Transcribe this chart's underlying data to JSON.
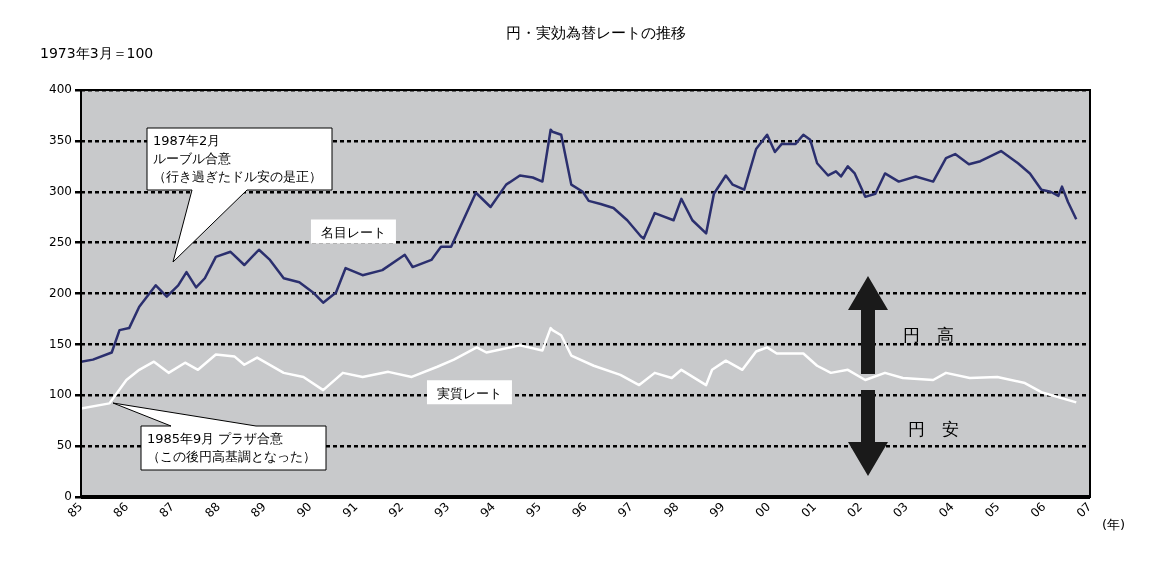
{
  "chart_data": {
    "type": "line",
    "title": "円・実効為替レートの推移",
    "subtitle": "1973年3月＝100",
    "xlabel": "(年)",
    "xlim": [
      1985,
      2007
    ],
    "xticks": [
      {
        "value": 1985,
        "label": "85"
      },
      {
        "value": 1986,
        "label": "86"
      },
      {
        "value": 1987,
        "label": "87"
      },
      {
        "value": 1988,
        "label": "88"
      },
      {
        "value": 1989,
        "label": "89"
      },
      {
        "value": 1990,
        "label": "90"
      },
      {
        "value": 1991,
        "label": "91"
      },
      {
        "value": 1992,
        "label": "92"
      },
      {
        "value": 1993,
        "label": "93"
      },
      {
        "value": 1994,
        "label": "94"
      },
      {
        "value": 1995,
        "label": "95"
      },
      {
        "value": 1996,
        "label": "96"
      },
      {
        "value": 1997,
        "label": "97"
      },
      {
        "value": 1998,
        "label": "98"
      },
      {
        "value": 1999,
        "label": "99"
      },
      {
        "value": 2000,
        "label": "00"
      },
      {
        "value": 2001,
        "label": "01"
      },
      {
        "value": 2002,
        "label": "02"
      },
      {
        "value": 2003,
        "label": "03"
      },
      {
        "value": 2004,
        "label": "04"
      },
      {
        "value": 2005,
        "label": "05"
      },
      {
        "value": 2006,
        "label": "06"
      },
      {
        "value": 2007,
        "label": "07"
      }
    ],
    "ylim": [
      0,
      400
    ],
    "yticks": [
      0,
      50,
      100,
      150,
      200,
      250,
      300,
      350,
      400
    ],
    "grid": "y",
    "legend": false,
    "marker": "none",
    "line_style": "solid",
    "series": [
      {
        "name": "名目レート",
        "color": "#2b2f6e",
        "x": [
          1985.0,
          1985.26,
          1985.67,
          1985.84,
          1986.05,
          1986.27,
          1986.63,
          1986.87,
          1987.12,
          1987.3,
          1987.51,
          1987.7,
          1987.94,
          1988.26,
          1988.56,
          1988.88,
          1989.12,
          1989.42,
          1989.76,
          1990.06,
          1990.28,
          1990.56,
          1990.77,
          1991.14,
          1991.57,
          1992.06,
          1992.23,
          1992.64,
          1992.85,
          1993.07,
          1993.61,
          1993.93,
          1994.27,
          1994.57,
          1994.85,
          1995.06,
          1995.24,
          1995.28,
          1995.47,
          1995.69,
          1995.94,
          1996.07,
          1996.33,
          1996.61,
          1996.91,
          1997.21,
          1997.27,
          1997.51,
          1997.92,
          1998.09,
          1998.33,
          1998.63,
          1998.8,
          1999.06,
          1999.21,
          1999.46,
          1999.72,
          1999.96,
          2000.13,
          2000.28,
          2000.58,
          2000.75,
          2000.9,
          2001.05,
          2001.29,
          2001.46,
          2001.57,
          2001.72,
          2001.87,
          2002.1,
          2002.32,
          2002.53,
          2002.83,
          2003.2,
          2003.58,
          2003.86,
          2004.06,
          2004.36,
          2004.61,
          2005.06,
          2005.43,
          2005.69,
          2005.94,
          2006.14,
          2006.31,
          2006.39,
          2006.52,
          2006.7
        ],
        "values": [
          133,
          135,
          142,
          164,
          166,
          187,
          208,
          197,
          208,
          221,
          206,
          215,
          236,
          241,
          228,
          243,
          233,
          215,
          211,
          201,
          191,
          201,
          225,
          218,
          223,
          238,
          226,
          233,
          246,
          246,
          299,
          285,
          307,
          316,
          314,
          310,
          361,
          359,
          356,
          307,
          300,
          291,
          288,
          284,
          272,
          256,
          254,
          279,
          272,
          293,
          272,
          259,
          298,
          316,
          307,
          302,
          342,
          356,
          339,
          347,
          347,
          356,
          351,
          328,
          316,
          320,
          315,
          325,
          318,
          295,
          298,
          318,
          310,
          315,
          310,
          333,
          337,
          327,
          330,
          340,
          328,
          318,
          302,
          300,
          296,
          305,
          290,
          273
        ]
      },
      {
        "name": "実質レート",
        "color": "#ffffff",
        "x": [
          1985.0,
          1985.62,
          1985.99,
          1986.27,
          1986.59,
          1986.91,
          1987.27,
          1987.55,
          1987.94,
          1988.35,
          1988.56,
          1988.84,
          1989.42,
          1989.85,
          1990.28,
          1990.71,
          1991.14,
          1991.7,
          1992.21,
          1992.77,
          1993.13,
          1993.63,
          1993.84,
          1994.57,
          1995.06,
          1995.24,
          1995.28,
          1995.47,
          1995.69,
          1996.18,
          1996.76,
          1997.17,
          1997.51,
          1997.88,
          1998.09,
          1998.63,
          1998.76,
          1999.06,
          1999.42,
          1999.72,
          1999.96,
          2000.17,
          2000.75,
          2001.05,
          2001.35,
          2001.72,
          2002.1,
          2002.53,
          2002.92,
          2003.58,
          2003.86,
          2004.38,
          2004.98,
          2005.58,
          2005.94,
          2006.7
        ],
        "values": [
          87,
          92,
          115,
          125,
          133,
          122,
          132,
          125,
          140,
          138,
          130,
          137,
          122,
          118,
          105,
          122,
          118,
          123,
          118,
          128,
          135,
          147,
          142,
          149,
          144,
          166,
          164,
          159,
          139,
          129,
          120,
          110,
          122,
          117,
          125,
          110,
          125,
          134,
          125,
          143,
          147,
          141,
          141,
          129,
          122,
          125,
          115,
          122,
          117,
          115,
          122,
          117,
          118,
          112,
          103,
          93
        ]
      }
    ],
    "annotations": [
      "1987年2月ルーブル合意（行き過ぎたドル安の是正）",
      "1985年9月  プラザ合意（この後円高基調となった）",
      "円　高",
      "円　安"
    ]
  }
}
